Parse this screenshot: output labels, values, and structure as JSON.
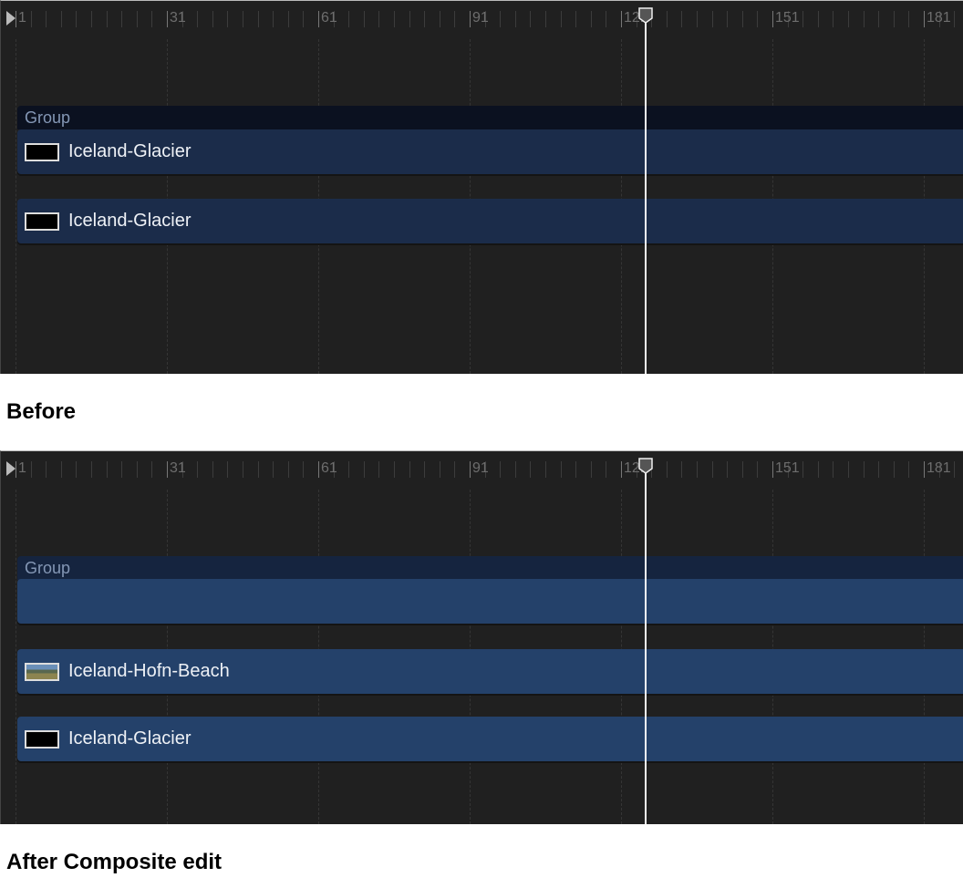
{
  "ruler": {
    "labels": [
      "1",
      "31",
      "61",
      "91",
      "121",
      "151",
      "181"
    ],
    "playhead_frame": 122
  },
  "before": {
    "caption": "Before",
    "group_label": "Group",
    "tracks": [
      {
        "name": "Iceland-Glacier",
        "thumbnail": "black"
      },
      {
        "name": "Iceland-Glacier",
        "thumbnail": "black"
      }
    ]
  },
  "after": {
    "caption": "After Composite edit",
    "group_label": "Group",
    "tracks": [
      {
        "name": "Iceland-Hofn-Beach",
        "thumbnail": "beach-photo"
      },
      {
        "name": "Iceland-Glacier",
        "thumbnail": "black"
      }
    ]
  },
  "colors": {
    "background": "#202020",
    "group_header_before": "#0b1120",
    "track_before": "#1b2c4a",
    "group_header_after": "#15243f",
    "track_after": "#24416a"
  }
}
